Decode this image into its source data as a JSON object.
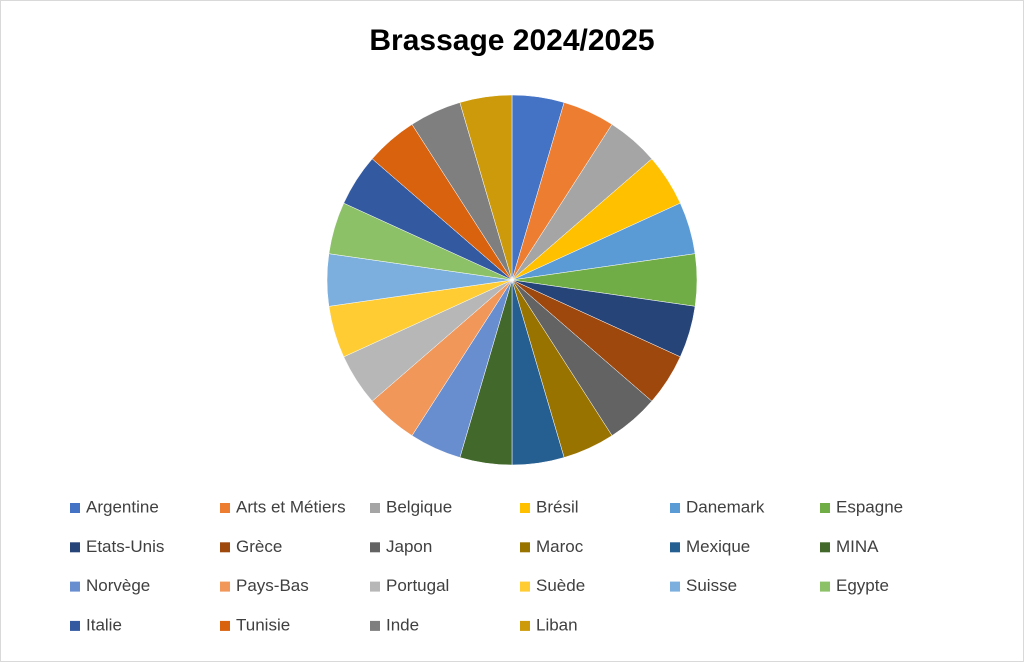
{
  "chart_data": {
    "type": "pie",
    "title": "Brassage 2024/2025",
    "categories": [
      "Argentine",
      "Arts et Métiers",
      "Belgique",
      "Brésil",
      "Danemark",
      "Espagne",
      "Etats-Unis",
      "Grèce",
      "Japon",
      "Maroc",
      "Mexique",
      "MINA",
      "Norvège",
      "Pays-Bas",
      "Portugal",
      "Suède",
      "Suisse",
      "Egypte",
      "Italie",
      "Tunisie",
      "Inde",
      "Liban"
    ],
    "values": [
      1,
      1,
      1,
      1,
      1,
      1,
      1,
      1,
      1,
      1,
      1,
      1,
      1,
      1,
      1,
      1,
      1,
      1,
      1,
      1,
      1,
      1
    ],
    "colors": [
      "#4472c4",
      "#ed7d31",
      "#a5a5a5",
      "#ffc000",
      "#5b9bd5",
      "#70ad47",
      "#264478",
      "#9e480e",
      "#636363",
      "#997300",
      "#255e91",
      "#43682b",
      "#698ed0",
      "#f1975a",
      "#b7b7b7",
      "#ffcd33",
      "#7cafdd",
      "#8cc168",
      "#335aa1",
      "#d9620f",
      "#7f7f7f",
      "#cc9a0a"
    ],
    "legend": "bottom"
  }
}
